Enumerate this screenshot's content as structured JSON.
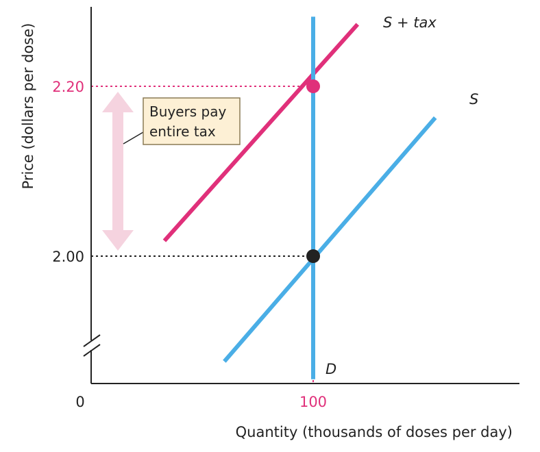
{
  "chart_data": {
    "type": "line",
    "title": "",
    "xlabel": "Quantity (thousands of doses per day)",
    "ylabel": "Price (dollars per dose)",
    "x_ticks": [
      {
        "value": 0,
        "label": "0"
      },
      {
        "value": 100,
        "label": "100"
      }
    ],
    "y_ticks": [
      {
        "value": 2.0,
        "label": "2.00"
      },
      {
        "value": 2.2,
        "label": "2.20"
      }
    ],
    "y_axis_break": true,
    "series": [
      {
        "name": "S + tax",
        "role": "supply-plus-tax",
        "color": "#e0307a",
        "points": [
          {
            "x": 33,
            "y": 2.018
          },
          {
            "x": 120,
            "y": 2.273
          }
        ]
      },
      {
        "name": "S",
        "role": "supply",
        "color": "#4aaee6",
        "points": [
          {
            "x": 60,
            "y": 1.876
          },
          {
            "x": 155,
            "y": 2.163
          }
        ]
      },
      {
        "name": "D",
        "role": "demand",
        "color": "#4aaee6",
        "points": [
          {
            "x": 100,
            "y": 1.855
          },
          {
            "x": 100,
            "y": 2.282
          }
        ]
      }
    ],
    "equilibria": [
      {
        "x": 100,
        "y": 2.2,
        "color": "#e0307a"
      },
      {
        "x": 100,
        "y": 2.0,
        "color": "#222222"
      }
    ],
    "annotation": {
      "lines": [
        "Buyers pay",
        "entire tax"
      ],
      "range": [
        2.0,
        2.2
      ]
    },
    "colors": {
      "tax": "#e0307a",
      "curve": "#4aaee6",
      "arrow": "#f5d3df",
      "note_bg": "#fdf0d5"
    }
  }
}
